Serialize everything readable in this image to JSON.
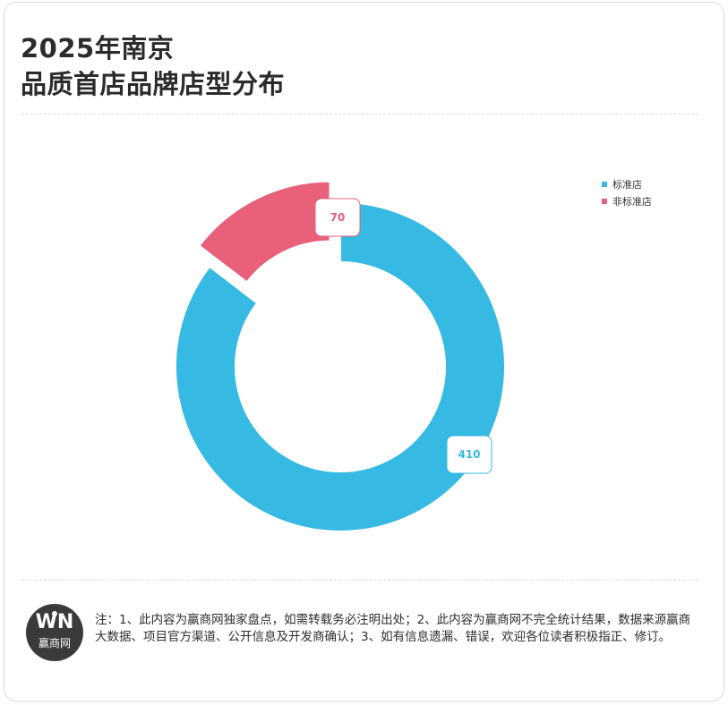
{
  "header": {
    "title_line1": "2025年南京",
    "title_line2": "品质首店品牌店型分布"
  },
  "chart_data": {
    "type": "pie",
    "variant": "donut",
    "exploded_slice": "非标准店",
    "legend_position": "top-right",
    "slices": [
      {
        "name": "标准店",
        "value": 410,
        "color": "#36b9e3"
      },
      {
        "name": "非标准店",
        "value": 70,
        "color": "#e8607a"
      }
    ]
  },
  "footer": {
    "logo_mark": "WN",
    "logo_name": "赢商网",
    "note": "注：1、此内容为赢商网独家盘点，如需转载务必注明出处；2、此内容为赢商网不完全统计结果，数据来源赢商大数据、项目官方渠道、公开信息及开发商确认；3、如有信息遗漏、错误，欢迎各位读者积极指正、修订。"
  }
}
